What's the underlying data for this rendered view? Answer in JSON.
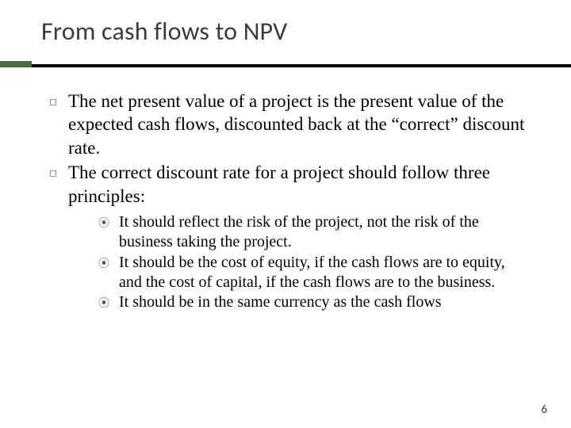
{
  "title": "From cash flows to NPV",
  "title_color": "#3b3b3b",
  "title_fontsize": 32,
  "underline_color": "#000000",
  "accent_color": "#4a6a46",
  "body_font": "Georgia",
  "body_fontsize_level1": 23,
  "body_fontsize_level2": 20,
  "bullet_level1_glyph": "◻",
  "bullet_level2_glyph": "⦿",
  "bullets": [
    {
      "text": "The net present value of a project is the present value of the expected cash flows, discounted back at the “correct” discount rate."
    },
    {
      "text": "The correct discount rate for a project should follow three principles:",
      "children": [
        "It should reflect the risk of the project, not the risk of the business taking the project.",
        "It should be the cost of equity, if the cash flows are to equity, and the cost of capital, if the cash flows are to the business.",
        "It should be in the same currency as the cash flows"
      ]
    }
  ],
  "page_number": "6",
  "background_color": "#ffffff"
}
